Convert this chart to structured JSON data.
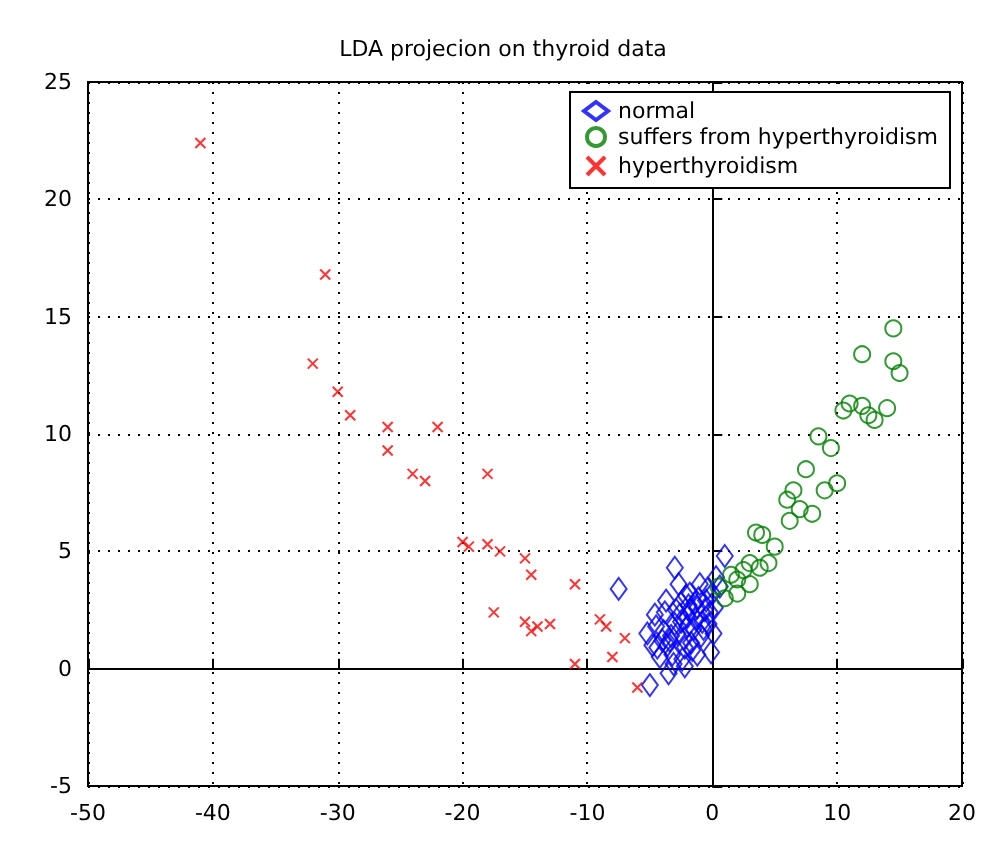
{
  "chart_data": {
    "type": "scatter",
    "title": "LDA projecion on thyroid data",
    "xlim": [
      -50,
      20
    ],
    "ylim": [
      -5,
      25
    ],
    "xticks": [
      -50,
      -40,
      -30,
      -20,
      -10,
      0,
      10,
      20
    ],
    "yticks": [
      -5,
      0,
      5,
      10,
      15,
      20,
      25
    ],
    "grid": true,
    "legend": "top right",
    "series": [
      {
        "name": "normal",
        "color": "#0000ff",
        "marker": "diamond",
        "x": [
          -7.5,
          -3,
          -5,
          -3.5,
          -4.5,
          -4,
          -3.8,
          -3.2,
          -2.8,
          -2.5,
          -2.2,
          -2,
          -1.8,
          -1.5,
          -1.2,
          -1,
          -0.8,
          -0.5,
          -0.2,
          0,
          0.3,
          -4.2,
          -3.6,
          -3,
          -2.6,
          -2.3,
          -1.9,
          -1.6,
          -1.3,
          -0.9,
          -0.6,
          -0.3,
          0.2,
          -4.8,
          -4.4,
          -3.9,
          -3.4,
          -2.9,
          -2.4,
          -2.1,
          -1.7,
          -1.1,
          -0.7,
          -0.4,
          0.1,
          -3.7,
          -3.1,
          -2.7,
          -2,
          -1.4,
          -5.2,
          -4.6,
          -2.2,
          -1.2,
          0.6,
          1,
          -2.5,
          -3.3,
          -1.8,
          -0.1
        ],
        "values": [
          3.4,
          4.3,
          -0.7,
          -0.2,
          1.8,
          1.2,
          2.4,
          0.6,
          1.5,
          2.8,
          0.9,
          2.2,
          3.2,
          1.7,
          2.6,
          3.6,
          2,
          2.9,
          2.4,
          3.2,
          3.9,
          0.5,
          1,
          1.9,
          2.3,
          1.3,
          2.7,
          0.8,
          2.1,
          1.4,
          2.5,
          1.9,
          2.6,
          1,
          0.9,
          1.6,
          1.2,
          2.5,
          0.4,
          3.1,
          1.1,
          3,
          1.7,
          3.4,
          1.5,
          2.9,
          0.2,
          3.6,
          1.8,
          2.8,
          1.5,
          2.3,
          0.1,
          0.6,
          3.5,
          4.8,
          2,
          1.4,
          2.5,
          0.7
        ]
      },
      {
        "name": "suffers from hyperthyroidism",
        "color": "#008000",
        "marker": "circle",
        "x": [
          0.5,
          1,
          1.5,
          2,
          2.5,
          3,
          3.5,
          4,
          3.8,
          4.5,
          5,
          6,
          6.5,
          7,
          6.2,
          7.5,
          8,
          9,
          10,
          8.5,
          9.5,
          10.5,
          11,
          12,
          12.5,
          13,
          14,
          12,
          14.5,
          14.5,
          15,
          2,
          3
        ],
        "values": [
          3.5,
          3,
          4,
          3.8,
          4.2,
          4.5,
          5.8,
          5.7,
          4.3,
          4.5,
          5.2,
          7.2,
          7.6,
          6.8,
          6.3,
          8.5,
          6.6,
          7.6,
          7.9,
          9.9,
          9.4,
          11,
          11.3,
          11.2,
          10.8,
          10.6,
          11.1,
          13.4,
          14.5,
          13.1,
          12.6,
          3.2,
          3.6
        ]
      },
      {
        "name": "hyperthyroidism",
        "color": "#ff0000",
        "marker": "cross",
        "x": [
          -41,
          -31,
          -32,
          -30,
          -29,
          -26,
          -26,
          -24,
          -23,
          -22,
          -18,
          -20,
          -19.5,
          -18,
          -17,
          -15,
          -14.5,
          -17.5,
          -15,
          -14.5,
          -14,
          -13,
          -11,
          -11,
          -9,
          -8.5,
          -8,
          -6,
          -7
        ],
        "values": [
          22.4,
          16.8,
          13,
          11.8,
          10.8,
          10.3,
          9.3,
          8.3,
          8,
          10.3,
          8.3,
          5.4,
          5.2,
          5.3,
          5,
          4.7,
          4,
          2.4,
          2,
          1.6,
          1.8,
          1.9,
          3.6,
          0.2,
          2.1,
          1.8,
          0.5,
          -0.8,
          1.3
        ]
      }
    ]
  }
}
